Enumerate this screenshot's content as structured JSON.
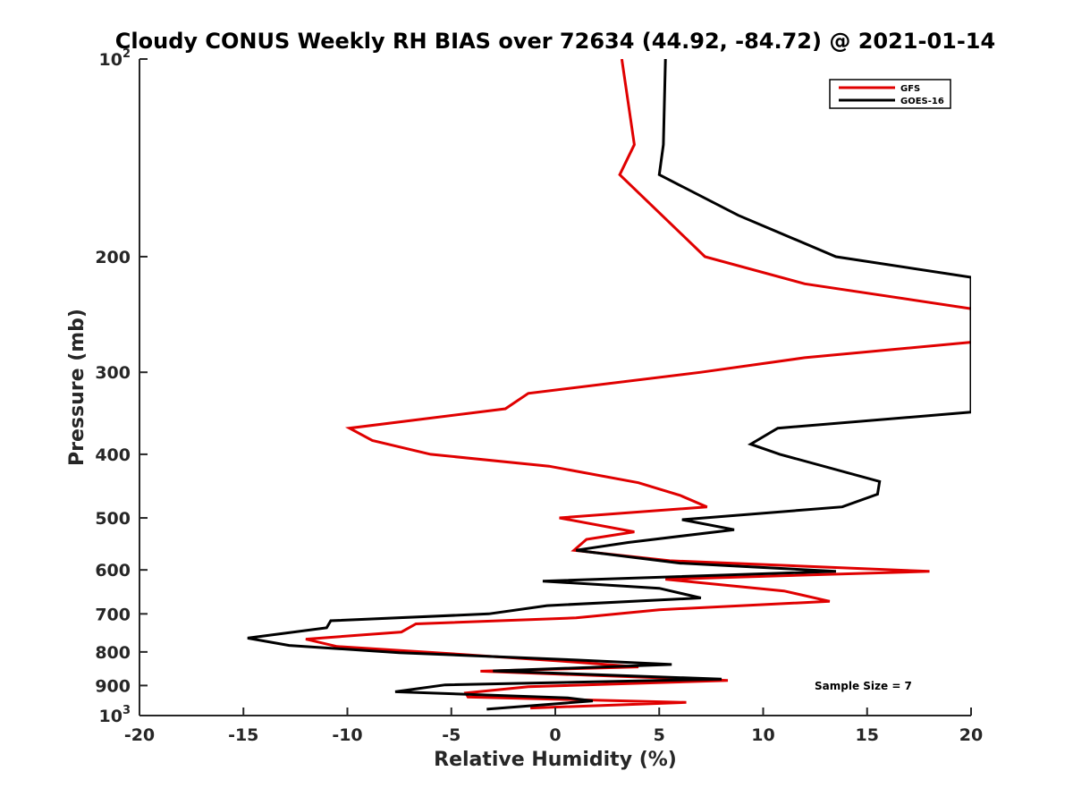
{
  "chart_data": {
    "type": "line",
    "title": "Cloudy CONUS Weekly RH BIAS over 72634 (44.92, -84.72) @ 2021-01-14",
    "xlabel": "Relative Humidity (%)",
    "ylabel": "Pressure (mb)",
    "xlim": [
      -20,
      20
    ],
    "ylim": [
      100,
      1000
    ],
    "y_scale": "log",
    "y_reversed": true,
    "grid": false,
    "x_ticks": [
      "-20",
      "-15",
      "-10",
      "-5",
      "0",
      "5",
      "10",
      "15",
      "20"
    ],
    "x_tick_values": [
      -20,
      -15,
      -10,
      -5,
      0,
      5,
      10,
      15,
      20
    ],
    "y_ticks": [
      {
        "value": 100,
        "base": "10",
        "exp": "2"
      },
      {
        "value": 200,
        "base": "200",
        "exp": ""
      },
      {
        "value": 300,
        "base": "300",
        "exp": ""
      },
      {
        "value": 400,
        "base": "400",
        "exp": ""
      },
      {
        "value": 500,
        "base": "500",
        "exp": ""
      },
      {
        "value": 600,
        "base": "600",
        "exp": ""
      },
      {
        "value": 700,
        "base": "700",
        "exp": ""
      },
      {
        "value": 800,
        "base": "800",
        "exp": ""
      },
      {
        "value": 900,
        "base": "900",
        "exp": ""
      },
      {
        "value": 1000,
        "base": "10",
        "exp": "3"
      }
    ],
    "legend_position": "top-right",
    "annotation": "Sample Size = 7",
    "series": [
      {
        "name": "GFS",
        "color": "#e00000",
        "points": [
          [
            3.2,
            100
          ],
          [
            3.8,
            135
          ],
          [
            3.1,
            150
          ],
          [
            7.2,
            200
          ],
          [
            12.0,
            220
          ],
          [
            20.0,
            240
          ],
          [
            20.0,
            270
          ],
          [
            12.0,
            285
          ],
          [
            7.0,
            300
          ],
          [
            -1.3,
            323
          ],
          [
            -2.4,
            341
          ],
          [
            -9.9,
            365
          ],
          [
            -8.8,
            381
          ],
          [
            -6.0,
            400
          ],
          [
            -0.3,
            417
          ],
          [
            4.0,
            442
          ],
          [
            6.0,
            462
          ],
          [
            7.3,
            481
          ],
          [
            0.2,
            500
          ],
          [
            3.8,
            525
          ],
          [
            1.5,
            539
          ],
          [
            0.9,
            560
          ],
          [
            5.5,
            581
          ],
          [
            18.0,
            603
          ],
          [
            5.3,
            620
          ],
          [
            11.0,
            646
          ],
          [
            13.2,
            670
          ],
          [
            5.0,
            690
          ],
          [
            1.0,
            710
          ],
          [
            -6.7,
            725
          ],
          [
            -7.4,
            746
          ],
          [
            -12.0,
            765
          ],
          [
            -10.5,
            785
          ],
          [
            -5.0,
            805
          ],
          [
            0.3,
            826
          ],
          [
            4.0,
            843
          ],
          [
            -3.6,
            856
          ],
          [
            8.3,
            884
          ],
          [
            -1.3,
            904
          ],
          [
            -4.3,
            924
          ],
          [
            -4.2,
            937
          ],
          [
            6.3,
            955
          ],
          [
            -1.2,
            974
          ]
        ]
      },
      {
        "name": "GOES-16",
        "color": "#000000",
        "points": [
          [
            5.3,
            100
          ],
          [
            5.2,
            135
          ],
          [
            5.0,
            150
          ],
          [
            8.8,
            173
          ],
          [
            13.5,
            200
          ],
          [
            20.0,
            215
          ],
          [
            20.0,
            345
          ],
          [
            10.7,
            365
          ],
          [
            9.4,
            386
          ],
          [
            10.8,
            400
          ],
          [
            15.6,
            440
          ],
          [
            15.5,
            460
          ],
          [
            13.8,
            481
          ],
          [
            6.1,
            503
          ],
          [
            8.6,
            521
          ],
          [
            3.5,
            545
          ],
          [
            1.0,
            560
          ],
          [
            6.0,
            586
          ],
          [
            13.5,
            603
          ],
          [
            -0.6,
            624
          ],
          [
            5.0,
            640
          ],
          [
            7.0,
            662
          ],
          [
            -0.4,
            680
          ],
          [
            -3.2,
            700
          ],
          [
            -10.8,
            717
          ],
          [
            -11.0,
            735
          ],
          [
            -14.8,
            762
          ],
          [
            -12.8,
            782
          ],
          [
            -7.5,
            802
          ],
          [
            1.0,
            823
          ],
          [
            5.6,
            836
          ],
          [
            -3.0,
            855
          ],
          [
            8.0,
            880
          ],
          [
            -5.3,
            898
          ],
          [
            -7.7,
            920
          ],
          [
            0.6,
            940
          ],
          [
            1.8,
            950
          ],
          [
            -3.3,
            978
          ]
        ]
      }
    ]
  }
}
